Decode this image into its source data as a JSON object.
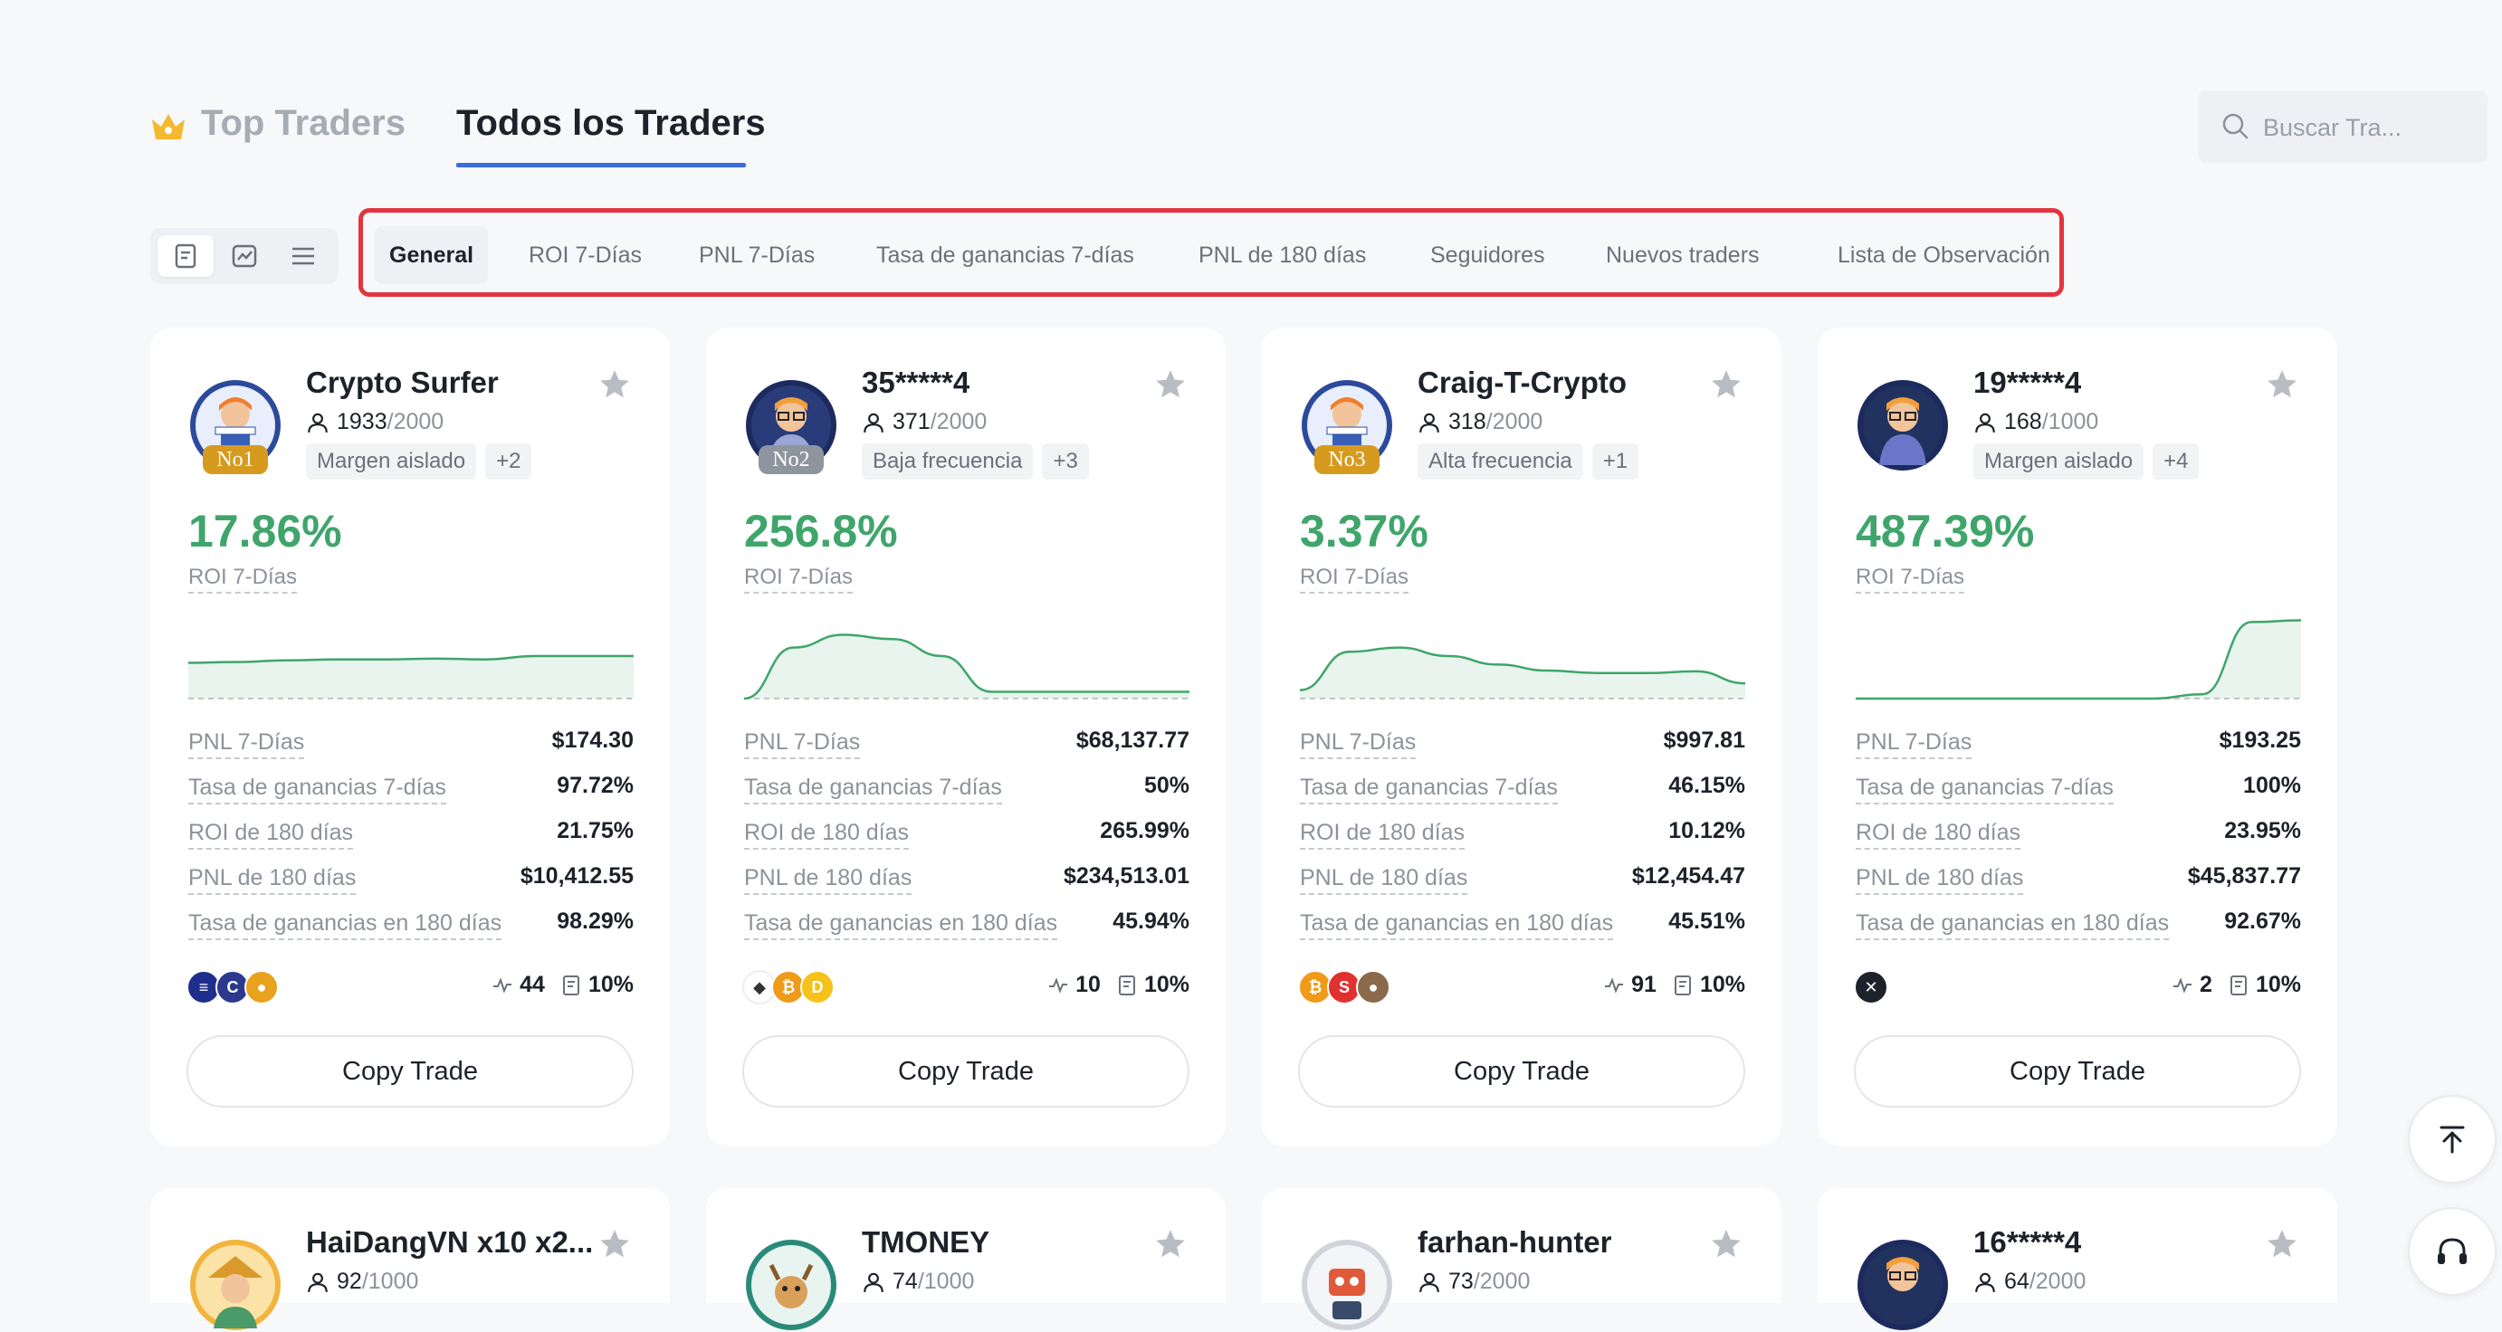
{
  "header": {
    "tab_top": "Top Traders",
    "tab_all": "Todos los Traders",
    "search_placeholder": "Buscar Tra..."
  },
  "filters": [
    "General",
    "ROI 7-Días",
    "PNL 7-Días",
    "Tasa de ganancias 7-días",
    "PNL de 180 días",
    "Seguidores",
    "Nuevos traders",
    "Lista de Observación"
  ],
  "labels": {
    "roi": "ROI 7-Días",
    "pnl7": "PNL 7-Días",
    "win7": "Tasa de ganancias 7-días",
    "roi180": "ROI de 180 días",
    "pnl180": "PNL de 180 días",
    "win180": "Tasa de ganancias en 180 días",
    "copy": "Copy Trade"
  },
  "cards": [
    {
      "name": "Crypto Surfer",
      "followers": "1933",
      "max": "/2000",
      "rank": "No1",
      "tags": [
        "Margen aislado",
        "+2"
      ],
      "roi": "17.86%",
      "pnl7": "$174.30",
      "win7": "97.72%",
      "roi180": "21.75%",
      "pnl180": "$10,412.55",
      "win180": "98.29%",
      "trades": "44",
      "share": "10%",
      "coins": [
        "stack-coin",
        "c-coin",
        "gold-coin"
      ]
    },
    {
      "name": "35*****4",
      "followers": "371",
      "max": "/2000",
      "rank": "No2",
      "tags": [
        "Baja frecuencia",
        "+3"
      ],
      "roi": "256.8%",
      "pnl7": "$68,137.77",
      "win7": "50%",
      "roi180": "265.99%",
      "pnl180": "$234,513.01",
      "win180": "45.94%",
      "trades": "10",
      "share": "10%",
      "coins": [
        "eth-coin",
        "btc-coin",
        "yellow-coin"
      ]
    },
    {
      "name": "Craig-T-Crypto",
      "followers": "318",
      "max": "/2000",
      "rank": "No3",
      "tags": [
        "Alta frecuencia",
        "+1"
      ],
      "roi": "3.37%",
      "pnl7": "$997.81",
      "win7": "46.15%",
      "roi180": "10.12%",
      "pnl180": "$12,454.47",
      "win180": "45.51%",
      "trades": "91",
      "share": "10%",
      "coins": [
        "btc-coin",
        "red-coin",
        "brown-coin"
      ]
    },
    {
      "name": "19*****4",
      "followers": "168",
      "max": "/1000",
      "rank": "",
      "tags": [
        "Margen aislado",
        "+4"
      ],
      "roi": "487.39%",
      "pnl7": "$193.25",
      "win7": "100%",
      "roi180": "23.95%",
      "pnl180": "$45,837.77",
      "win180": "92.67%",
      "trades": "2",
      "share": "10%",
      "coins": [
        "x-coin"
      ]
    }
  ],
  "cards_row2": [
    {
      "name": "HaiDangVN x10 x2...",
      "followers": "92",
      "max": "/1000"
    },
    {
      "name": "TMONEY",
      "followers": "74",
      "max": "/1000"
    },
    {
      "name": "farhan-hunter",
      "followers": "73",
      "max": "/2000"
    },
    {
      "name": "16*****4",
      "followers": "64",
      "max": "/2000"
    }
  ],
  "chart_data": [
    {
      "type": "area",
      "series": [
        {
          "values": [
            0.42,
            0.43,
            0.45,
            0.46,
            0.46,
            0.47,
            0.46,
            0.5,
            0.5,
            0.5
          ]
        }
      ],
      "color": "#3fa56b"
    },
    {
      "type": "area",
      "series": [
        {
          "values": [
            0.0,
            0.6,
            0.75,
            0.7,
            0.5,
            0.08,
            0.08,
            0.08,
            0.08,
            0.08
          ]
        }
      ],
      "color": "#3fa56b"
    },
    {
      "type": "area",
      "series": [
        {
          "values": [
            0.1,
            0.55,
            0.6,
            0.5,
            0.4,
            0.33,
            0.3,
            0.3,
            0.32,
            0.18
          ]
        }
      ],
      "color": "#3fa56b"
    },
    {
      "type": "area",
      "series": [
        {
          "values": [
            0.0,
            0.0,
            0.0,
            0.0,
            0.0,
            0.0,
            0.0,
            0.05,
            0.9,
            0.92
          ]
        }
      ],
      "color": "#3fa56b"
    }
  ],
  "colors": {
    "accent": "#3d6bde",
    "positive": "#3fa56b",
    "highlight": "#e3343f"
  }
}
